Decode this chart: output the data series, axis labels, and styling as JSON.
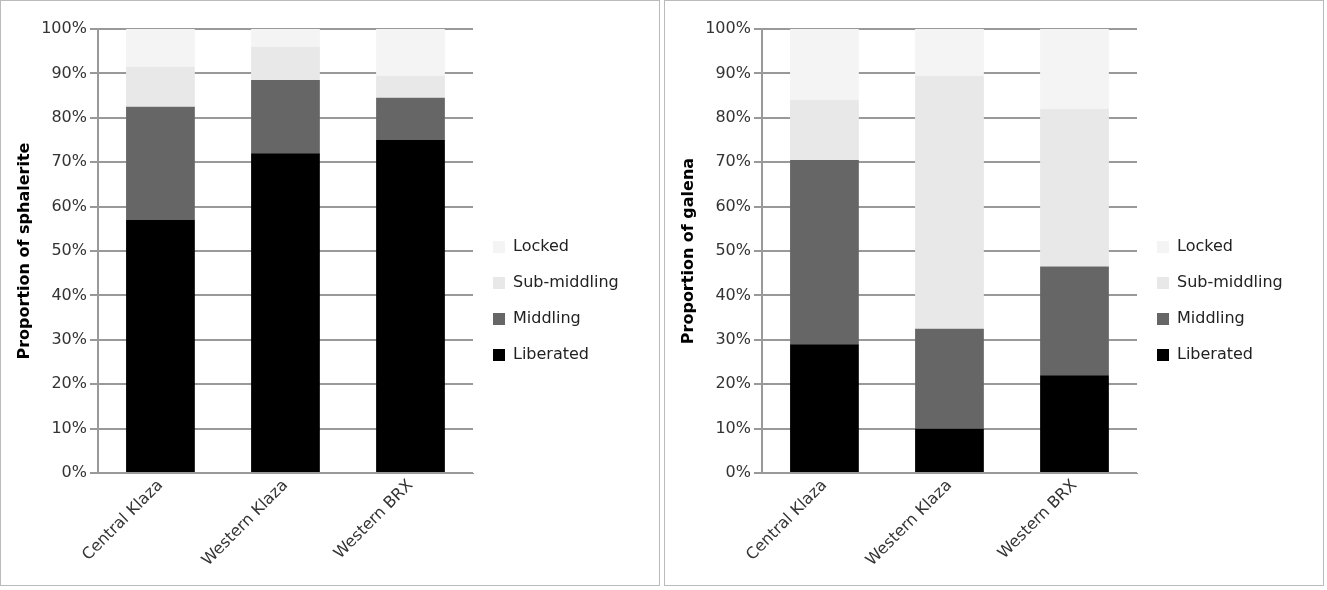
{
  "chart_data": [
    {
      "type": "bar",
      "stacked": true,
      "ylabel": "Proportion of sphalerite",
      "categories": [
        "Central Klaza",
        "Western Klaza",
        "Western BRX"
      ],
      "ylim": [
        0,
        100
      ],
      "yticks": [
        {
          "value": 0,
          "label": "0%"
        },
        {
          "value": 10,
          "label": "10%"
        },
        {
          "value": 20,
          "label": "20%"
        },
        {
          "value": 30,
          "label": "30%"
        },
        {
          "value": 40,
          "label": "40%"
        },
        {
          "value": 50,
          "label": "50%"
        },
        {
          "value": 60,
          "label": "60%"
        },
        {
          "value": 70,
          "label": "70%"
        },
        {
          "value": 80,
          "label": "80%"
        },
        {
          "value": 90,
          "label": "90%"
        },
        {
          "value": 100,
          "label": "100%"
        }
      ],
      "grid": "y",
      "legend": "right",
      "series": [
        {
          "name": "Liberated",
          "color": "#000000",
          "values": [
            57,
            72,
            75
          ]
        },
        {
          "name": "Middling",
          "color": "#666666",
          "values": [
            25.5,
            16.5,
            9.5
          ]
        },
        {
          "name": "Sub-middling",
          "color": "#e8e8e8",
          "values": [
            9,
            7.5,
            5
          ]
        },
        {
          "name": "Locked",
          "color": "#f4f4f4",
          "values": [
            8.5,
            4,
            10.5
          ]
        }
      ]
    },
    {
      "type": "bar",
      "stacked": true,
      "ylabel": "Proportion of galena",
      "categories": [
        "Central Klaza",
        "Western Klaza",
        "Western BRX"
      ],
      "ylim": [
        0,
        100
      ],
      "yticks": [
        {
          "value": 0,
          "label": "0%"
        },
        {
          "value": 10,
          "label": "10%"
        },
        {
          "value": 20,
          "label": "20%"
        },
        {
          "value": 30,
          "label": "30%"
        },
        {
          "value": 40,
          "label": "40%"
        },
        {
          "value": 50,
          "label": "50%"
        },
        {
          "value": 60,
          "label": "60%"
        },
        {
          "value": 70,
          "label": "70%"
        },
        {
          "value": 80,
          "label": "80%"
        },
        {
          "value": 90,
          "label": "90%"
        },
        {
          "value": 100,
          "label": "100%"
        }
      ],
      "grid": "y",
      "legend": "right",
      "series": [
        {
          "name": "Liberated",
          "color": "#000000",
          "values": [
            29,
            10,
            22
          ]
        },
        {
          "name": "Middling",
          "color": "#666666",
          "values": [
            41.5,
            22.5,
            24.5
          ]
        },
        {
          "name": "Sub-middling",
          "color": "#e8e8e8",
          "values": [
            13.5,
            57,
            35.5
          ]
        },
        {
          "name": "Locked",
          "color": "#f4f4f4",
          "values": [
            16,
            10.5,
            18
          ]
        }
      ]
    }
  ]
}
